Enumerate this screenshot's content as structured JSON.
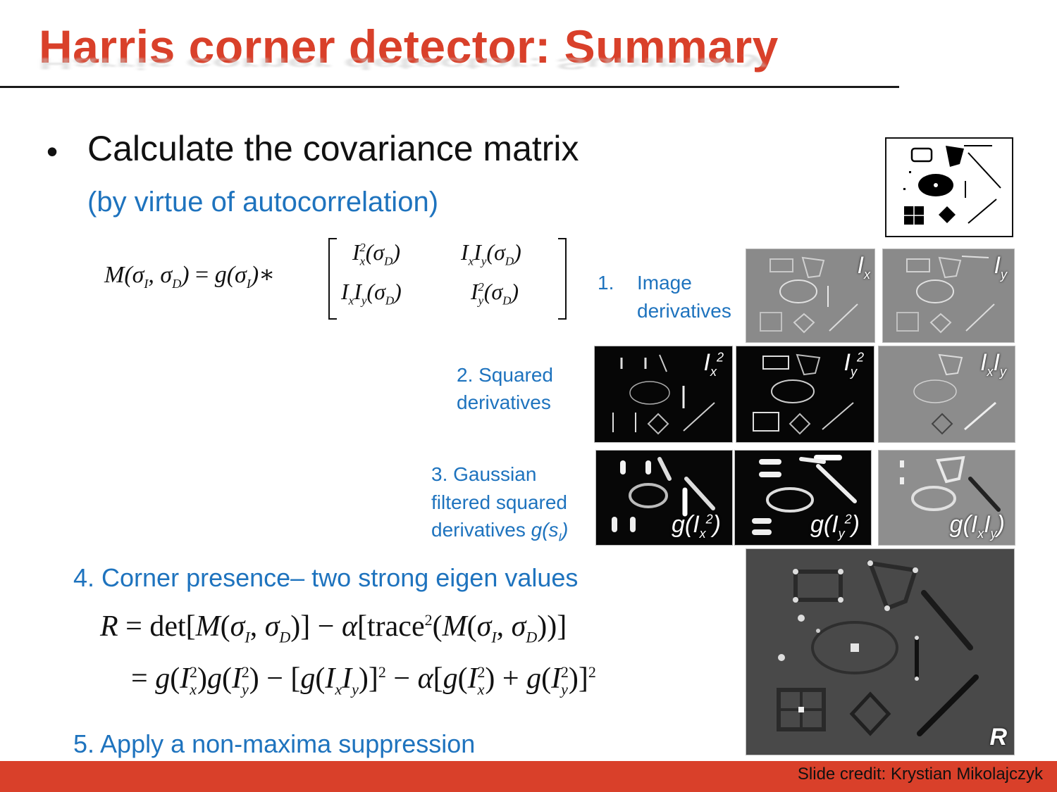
{
  "slide": {
    "title": "Harris corner detector: Summary",
    "bullet": "Calculate the covariance matrix",
    "bullet_sub": "(by virtue of autocorrelation)"
  },
  "steps": {
    "s1_num": "1.",
    "s1_text": "Image",
    "s1_text2": "derivatives",
    "s2_line1": "2. Squared",
    "s2_line2": "derivatives",
    "s3_line1": "3. Gaussian",
    "s3_line2": "filtered squared",
    "s3_line3": "derivatives",
    "s3_g": "g(s",
    "s3_gsub": "I",
    "s3_gend": ")",
    "s4": "4. Corner presence– two strong eigen values",
    "s5": "5. Apply a non-maxima suppression"
  },
  "panel_labels": {
    "ix": "I",
    "ix_sub": "x",
    "iy": "I",
    "iy_sub": "y",
    "ix2": "I",
    "ix2_sub": "x",
    "ix2_sup": "2",
    "iy2": "I",
    "iy2_sub": "y",
    "iy2_sup": "2",
    "ixiy_a": "I",
    "ixiy_sub1": "x",
    "ixiy_b": "I",
    "ixiy_sub2": "y",
    "gix2": "g(I",
    "gix2_sub": "x",
    "gix2_sup": "2",
    "gix2_end": ")",
    "giy2": "g(I",
    "giy2_sub": "y",
    "giy2_sup": "2",
    "giy2_end": ")",
    "gixiy": "g(I",
    "gixiy_sub1": "x",
    "gixiy_mid": "I",
    "gixiy_sub2": "y",
    "gixiy_end": ")",
    "r": "R"
  },
  "footer": {
    "credit": "Slide credit: Krystian Mikolajczyk"
  },
  "colors": {
    "accent": "#d9402a",
    "blue": "#1e73be"
  }
}
